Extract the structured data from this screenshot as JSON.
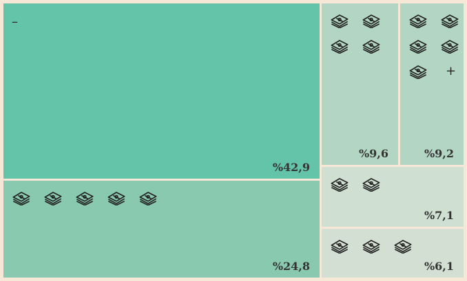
{
  "chart_data": {
    "type": "treemap",
    "values": [
      42.9,
      24.8,
      9.6,
      9.2,
      7.1,
      6.1
    ],
    "value_labels": [
      "%42,9",
      "%24,8",
      "%9,6",
      "%9,2",
      "%7,1",
      "%6,1"
    ],
    "colors": [
      "#64c4aa",
      "#88c9b0",
      "#b2d6c3",
      "#b2d6c3",
      "#cfe0d3",
      "#d3dfd3"
    ],
    "icons": [
      0,
      5,
      4,
      5,
      2,
      3
    ],
    "markers": [
      "–",
      null,
      null,
      "+",
      null,
      null
    ]
  }
}
